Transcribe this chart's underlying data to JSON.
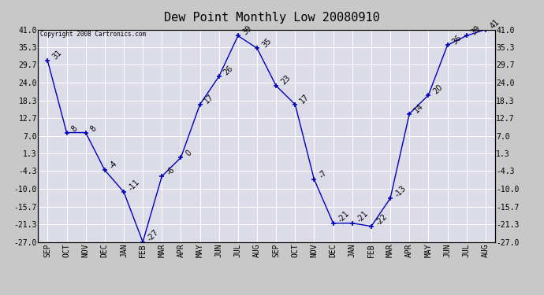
{
  "title": "Dew Point Monthly Low 20080910",
  "copyright": "Copyright 2008 Cartronics.com",
  "months": [
    "SEP",
    "OCT",
    "NOV",
    "DEC",
    "JAN",
    "FEB",
    "MAR",
    "APR",
    "MAY",
    "JUN",
    "JUL",
    "AUG",
    "SEP",
    "OCT",
    "NOV",
    "DEC",
    "JAN",
    "FEB",
    "MAR",
    "APR",
    "MAY",
    "JUN",
    "JUL",
    "AUG"
  ],
  "values": [
    31,
    8,
    8,
    -4,
    -11,
    -27,
    -6,
    0,
    17,
    26,
    39,
    35,
    23,
    17,
    -7,
    -21,
    -21,
    -22,
    -13,
    14,
    20,
    36,
    39,
    41
  ],
  "ylim_min": -27.0,
  "ylim_max": 41.0,
  "yticks": [
    41.0,
    35.3,
    29.7,
    24.0,
    18.3,
    12.7,
    7.0,
    1.3,
    -4.3,
    -10.0,
    -15.7,
    -21.3,
    -27.0
  ],
  "line_color": "#0000bb",
  "bg_color": "#dcdce8",
  "grid_color": "#ffffff",
  "outer_bg": "#c8c8c8",
  "title_fontsize": 11,
  "tick_fontsize": 7,
  "anno_fontsize": 7
}
